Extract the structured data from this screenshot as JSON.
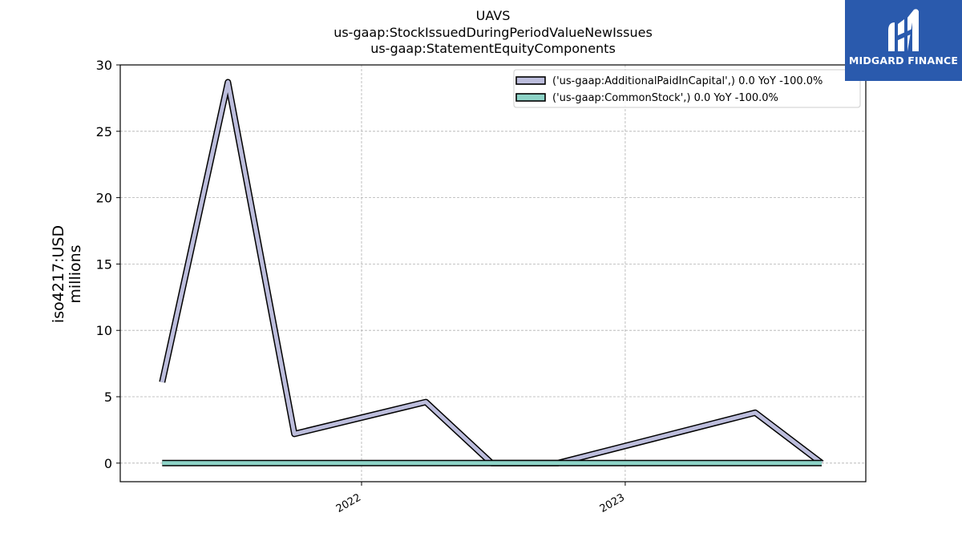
{
  "brand": {
    "name": "MIDGARD FINANCE",
    "colors": {
      "background": "#2a5aad",
      "text": "#ffffff"
    }
  },
  "chart_data": {
    "type": "line",
    "title": "UAVS",
    "subtitle_lines": [
      "us-gaap:StockIssuedDuringPeriodValueNewIssues",
      "us-gaap:StatementEquityComponents"
    ],
    "ylabel_lines": [
      "iso4217:USD",
      "millions"
    ],
    "xlabel": "",
    "ylim": [
      -1.4,
      30
    ],
    "yticks": [
      0,
      5,
      10,
      15,
      20,
      25,
      30
    ],
    "xlim": [
      "2021-02-01",
      "2023-11-30"
    ],
    "xticks": [
      {
        "label": "2022",
        "date": "2022-01-01"
      },
      {
        "label": "2023",
        "date": "2023-01-01"
      }
    ],
    "grid": true,
    "legend_position": "top-right",
    "series": [
      {
        "name": "('us-gaap:AdditionalPaidInCapital',) 0.0 YoY -100.0%",
        "color": "#bcbddc",
        "x": [
          "2021-03-31",
          "2021-06-30",
          "2021-09-30",
          "2022-03-31",
          "2022-06-30",
          "2022-09-30",
          "2023-06-30",
          "2023-09-30"
        ],
        "y": [
          6.1,
          28.7,
          2.2,
          4.6,
          0.0,
          0.0,
          3.8,
          0.0
        ]
      },
      {
        "name": "('us-gaap:CommonStock',) 0.0 YoY -100.0%",
        "color": "#8dd3c7",
        "x": [
          "2021-03-31",
          "2021-06-30",
          "2021-09-30",
          "2022-03-31",
          "2022-06-30",
          "2022-09-30",
          "2023-06-30",
          "2023-09-30"
        ],
        "y": [
          0.0,
          0.0,
          0.0,
          0.0,
          0.0,
          0.0,
          0.0,
          0.0
        ]
      }
    ]
  }
}
